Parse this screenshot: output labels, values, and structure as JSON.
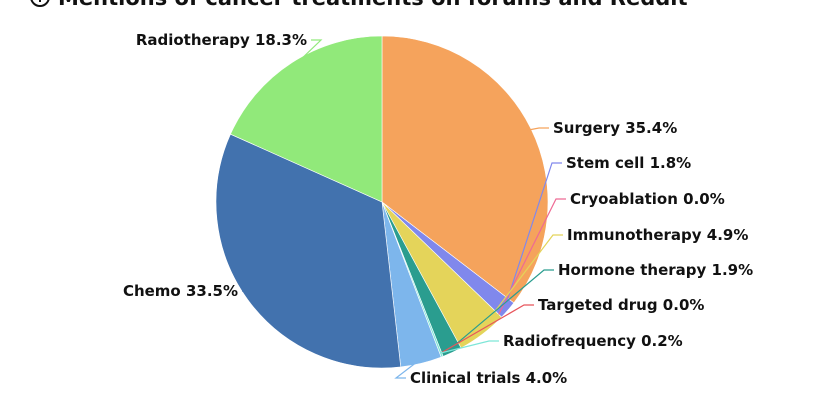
{
  "chart_data": {
    "type": "pie",
    "title": "Mentions of cancer treatments on forums and Reddit",
    "title_icon": "info-circle-icon",
    "start_angle_deg": 0,
    "direction": "clockwise",
    "slices": [
      {
        "label": "Surgery",
        "value": 35.4,
        "display": "Surgery 35.4%",
        "color": "#F5A35C"
      },
      {
        "label": "Stem cell",
        "value": 1.8,
        "display": "Stem cell 1.8%",
        "color": "#8088EC"
      },
      {
        "label": "Cryoablation",
        "value": 0.0,
        "display": "Cryoablation 0.0%",
        "color": "#EE6A94"
      },
      {
        "label": "Immunotherapy",
        "value": 4.9,
        "display": "Immunotherapy 4.9%",
        "color": "#E4D45A"
      },
      {
        "label": "Hormone therapy",
        "value": 1.9,
        "display": "Hormone therapy 1.9%",
        "color": "#2A9D8F"
      },
      {
        "label": "Targeted drug",
        "value": 0.0,
        "display": "Targeted drug 0.0%",
        "color": "#E8555B"
      },
      {
        "label": "Radiofrequency",
        "value": 0.2,
        "display": "Radiofrequency 0.2%",
        "color": "#7EE6D8"
      },
      {
        "label": "Clinical trials",
        "value": 4.0,
        "display": "Clinical trials 4.0%",
        "color": "#7DB6EC"
      },
      {
        "label": "Chemo",
        "value": 33.5,
        "display": "Chemo 33.5%",
        "color": "#4272AE"
      },
      {
        "label": "Radiotherapy",
        "value": 18.3,
        "display": "Radiotherapy 18.3%",
        "color": "#91E97A"
      }
    ]
  }
}
